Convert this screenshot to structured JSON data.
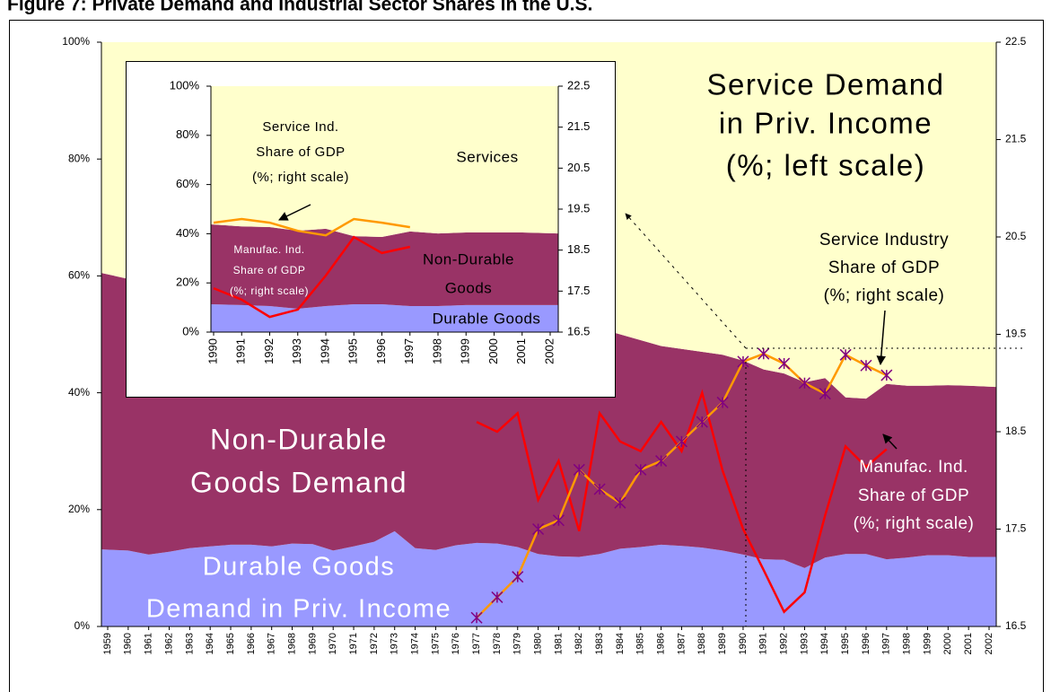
{
  "title": "Figure 7: Private Demand and Industrial Sector Shares in the U.S.",
  "chart_data": [
    {
      "type": "area",
      "categories": [
        "1959",
        "1960",
        "1961",
        "1962",
        "1963",
        "1964",
        "1965",
        "1966",
        "1967",
        "1968",
        "1969",
        "1970",
        "1971",
        "1972",
        "1973",
        "1974",
        "1975",
        "1976",
        "1977",
        "1978",
        "1979",
        "1980",
        "1981",
        "1982",
        "1983",
        "1984",
        "1985",
        "1986",
        "1987",
        "1988",
        "1989",
        "1990",
        "1991",
        "1992",
        "1993",
        "1994",
        "1995",
        "1996",
        "1997",
        "1998",
        "1999",
        "2000",
        "2001",
        "2002"
      ],
      "ylim": [
        0,
        100
      ],
      "yticks": [
        {
          "value": 0,
          "label": "0%"
        },
        {
          "value": 20,
          "label": "20%"
        },
        {
          "value": 40,
          "label": "40%"
        },
        {
          "value": 60,
          "label": "60%"
        },
        {
          "value": 80,
          "label": "80%"
        },
        {
          "value": 100,
          "label": "100%"
        }
      ],
      "y2lim": [
        16.5,
        22.5
      ],
      "y2ticks": [
        16.5,
        17.5,
        18.5,
        19.5,
        20.5,
        21.5,
        22.5
      ],
      "series": [
        {
          "type": "area",
          "color": "#9999ff",
          "values": [
            13.2,
            13,
            12.3,
            12.8,
            13.4,
            13.7,
            14,
            14,
            13.7,
            14.2,
            14.1,
            13,
            13.7,
            14.5,
            16.3,
            13.4,
            13.1,
            13.9,
            14.3,
            14.2,
            13.6,
            12.4,
            12,
            11.9,
            12.4,
            13.3,
            13.6,
            14,
            13.8,
            13.5,
            13,
            12.3,
            11.5,
            11.4,
            10,
            11.8,
            12.4,
            12.4,
            11.5,
            11.8,
            12.2,
            12.2,
            11.9,
            11.9
          ]
        },
        {
          "type": "area",
          "color": "#993366",
          "values": [
            47.3,
            46.5,
            46.7,
            45.7,
            44.4,
            43.3,
            42.5,
            42,
            41.8,
            40.8,
            40.4,
            41.5,
            40.3,
            39,
            36.7,
            40.6,
            40.9,
            39.1,
            38.2,
            37.8,
            38.4,
            40.1,
            40,
            39.6,
            38.6,
            36.7,
            35.4,
            34,
            33.7,
            33.5,
            33.5,
            33.2,
            32.5,
            31.9,
            31.8,
            30.7,
            26.8,
            26.6,
            30,
            29.4,
            29,
            29.1,
            29.3,
            29.1
          ]
        },
        {
          "type": "area",
          "color": "#ffffcc",
          "values": [
            39.5,
            40.5,
            41,
            41.5,
            42.2,
            43,
            43.5,
            44,
            44.5,
            45,
            45.5,
            45.5,
            46,
            46.5,
            47,
            46,
            46,
            47,
            47.5,
            48,
            48,
            47.5,
            48,
            48.5,
            49,
            50,
            51,
            52,
            52.5,
            53,
            53.5,
            54.5,
            56,
            56.7,
            58.2,
            57.5,
            60.8,
            61,
            58.5,
            58.8,
            58.8,
            58.7,
            58.8,
            59
          ]
        },
        {
          "type": "line",
          "axis": "y2",
          "color": "#ff0000",
          "values": [
            null,
            null,
            null,
            null,
            null,
            null,
            null,
            null,
            null,
            null,
            null,
            null,
            null,
            null,
            null,
            null,
            null,
            null,
            18.6,
            18.5,
            18.69,
            17.8,
            18.2,
            17.48,
            18.69,
            18.4,
            18.3,
            18.6,
            18.3,
            18.9,
            18.1,
            17.5,
            17.08,
            16.65,
            16.85,
            17.64,
            18.35,
            18.14,
            18.32,
            null,
            null,
            null,
            null,
            null
          ]
        },
        {
          "type": "line",
          "axis": "y2",
          "color": "#ff9900",
          "marker": "star",
          "marker_color": "#800080",
          "values": [
            null,
            null,
            null,
            null,
            null,
            null,
            null,
            null,
            null,
            null,
            null,
            null,
            null,
            null,
            null,
            null,
            null,
            null,
            16.59,
            16.8,
            17.01,
            17.5,
            17.59,
            18.11,
            17.91,
            17.77,
            18.11,
            18.2,
            18.4,
            18.6,
            18.8,
            19.22,
            19.3,
            19.2,
            19.0,
            18.89,
            19.29,
            19.18,
            19.08,
            null,
            null,
            null,
            null,
            null
          ]
        }
      ],
      "annotations": [
        {
          "lines": [
            "Service Demand",
            "in Priv. Income",
            "(%; left scale)"
          ]
        },
        {
          "lines": [
            "Non-Durable",
            "Goods Demand"
          ]
        },
        {
          "lines": [
            "Durable Goods",
            "Demand in Priv. Income"
          ]
        },
        {
          "lines": [
            "Service Industry",
            "Share of GDP",
            "(%; right scale)"
          ]
        },
        {
          "lines": [
            "Manufac. Ind.",
            "Share of GDP",
            "(%; right scale)"
          ]
        }
      ]
    },
    {
      "type": "area",
      "categories": [
        "1990",
        "1991",
        "1992",
        "1993",
        "1994",
        "1995",
        "1996",
        "1997",
        "1998",
        "1999",
        "2000",
        "2001",
        "2002"
      ],
      "ylim": [
        0,
        100
      ],
      "yticks": [
        {
          "value": 0,
          "label": "0%"
        },
        {
          "value": 20,
          "label": "20%"
        },
        {
          "value": 40,
          "label": "40%"
        },
        {
          "value": 60,
          "label": "60%"
        },
        {
          "value": 80,
          "label": "80%"
        },
        {
          "value": 100,
          "label": "100%"
        }
      ],
      "y2lim": [
        16.5,
        22.5
      ],
      "y2ticks": [
        16.5,
        17.5,
        18.5,
        19.5,
        20.5,
        21.5,
        22.5
      ],
      "series": [
        {
          "type": "area",
          "color": "#9999ff",
          "values": [
            11.3,
            11,
            10.6,
            9.5,
            10.6,
            11.3,
            11.3,
            10.6,
            10.6,
            11,
            11,
            11,
            11
          ]
        },
        {
          "type": "area",
          "color": "#993366",
          "values": [
            32.5,
            32,
            32.1,
            31.7,
            31.4,
            27.7,
            27.4,
            30.3,
            29.5,
            29.5,
            29.5,
            29.5,
            29.1
          ]
        },
        {
          "type": "area",
          "color": "#ffffcc",
          "values": [
            56.2,
            57,
            57.3,
            58.8,
            58,
            61,
            61.3,
            59.1,
            59.9,
            59.5,
            59.5,
            59.5,
            59.9
          ]
        },
        {
          "type": "line",
          "axis": "y2",
          "color": "#ff0000",
          "values": [
            17.57,
            17.29,
            16.87,
            17.05,
            17.88,
            18.82,
            18.43,
            18.58,
            null,
            null,
            null,
            null,
            null
          ]
        },
        {
          "type": "line",
          "axis": "y2",
          "color": "#ff9900",
          "values": [
            19.17,
            19.26,
            19.17,
            18.97,
            18.86,
            19.26,
            19.17,
            19.06,
            null,
            null,
            null,
            null,
            null
          ]
        }
      ],
      "annotations": [
        {
          "lines": [
            "Service Ind.",
            "Share of GDP",
            "(%; right scale)"
          ]
        },
        {
          "lines": [
            "Services"
          ]
        },
        {
          "lines": [
            "Manufac. Ind.",
            "Share of GDP",
            "(%; right scale)"
          ]
        },
        {
          "lines": [
            "Non-Durable",
            "Goods"
          ]
        },
        {
          "lines": [
            "Durable Goods"
          ]
        }
      ]
    }
  ]
}
